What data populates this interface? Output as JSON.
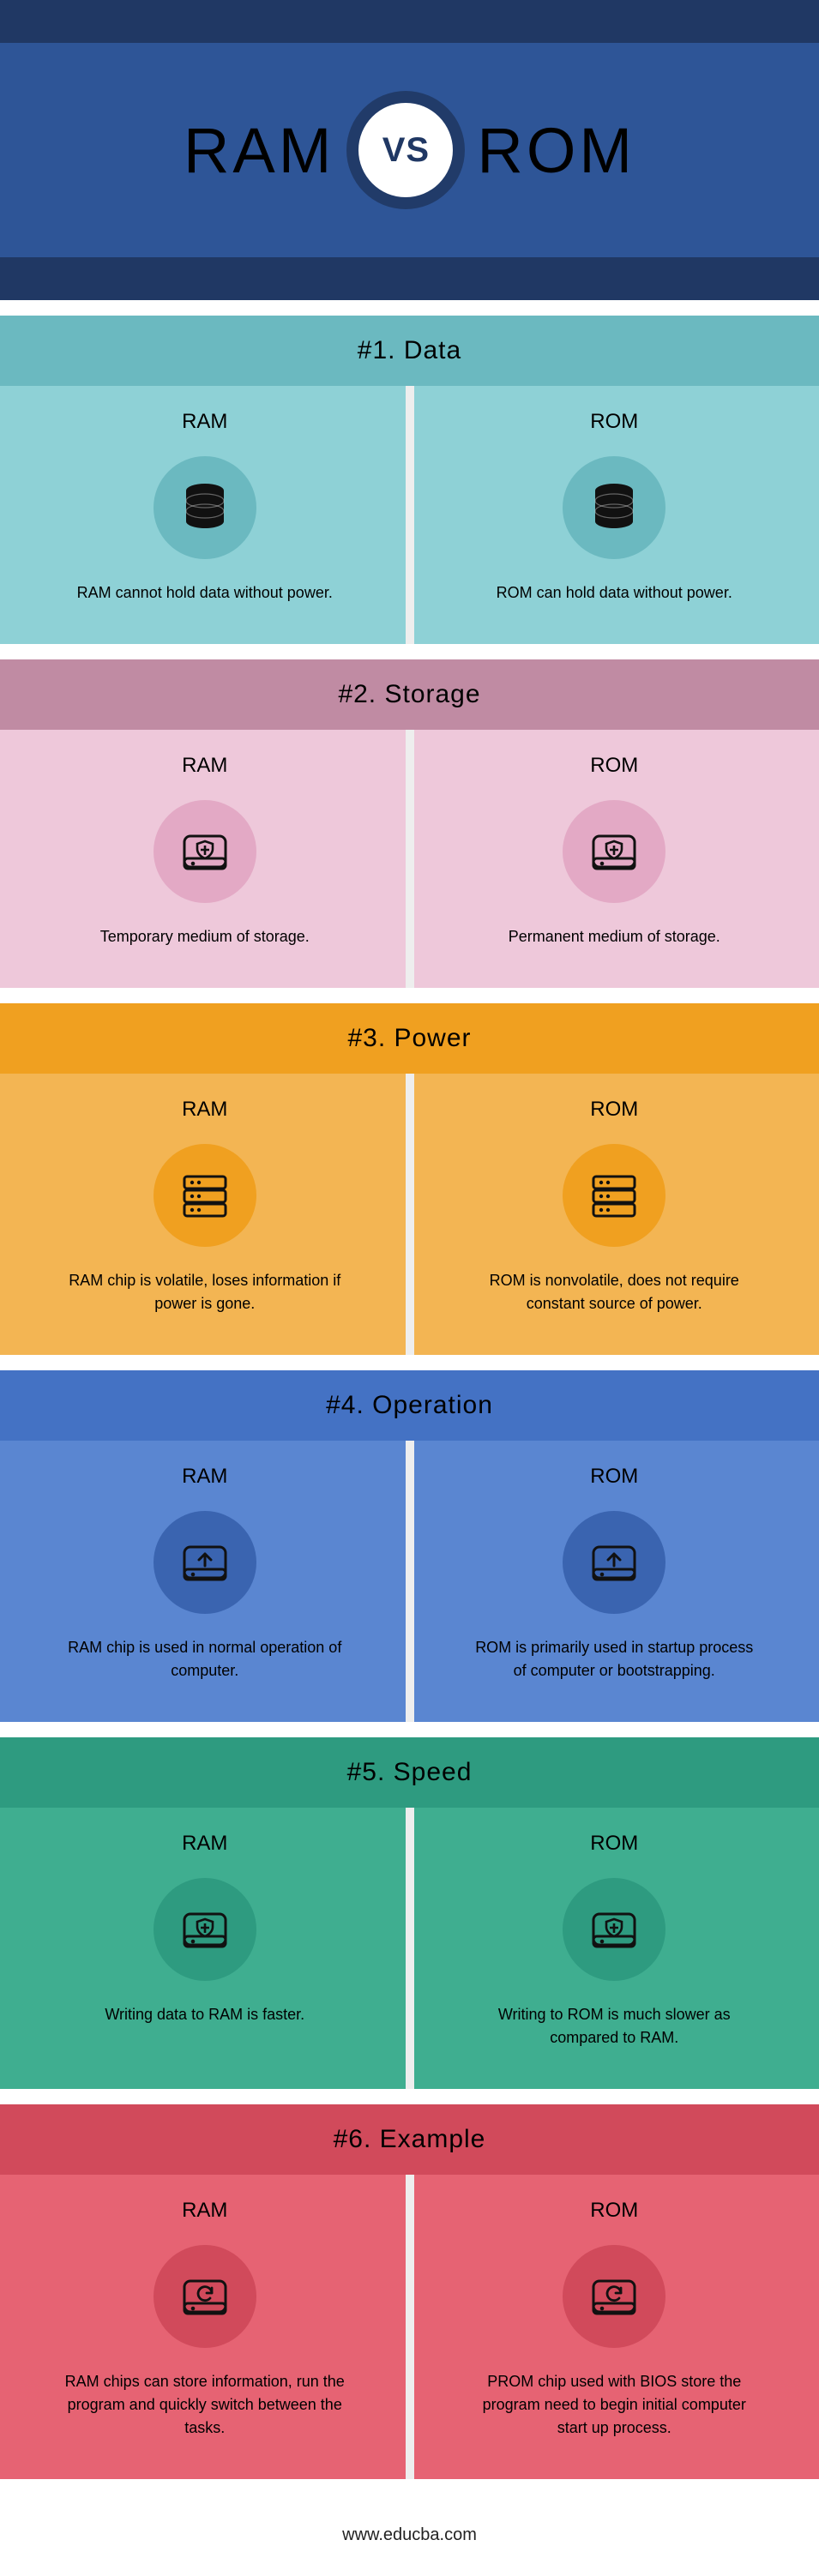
{
  "header": {
    "left": "RAM",
    "right": "ROM",
    "vs": "VS"
  },
  "footer": "www.educba.com",
  "sections": [
    {
      "title": "#1. Data",
      "header_bg": "#6bb9c0",
      "body_bg": "#8ed1d6",
      "circle_bg": "#6bb9c0",
      "icon": "db",
      "ram_label": "RAM",
      "rom_label": "ROM",
      "ram_text": "RAM cannot hold data without power.",
      "rom_text": "ROM can hold data without power."
    },
    {
      "title": "#2. Storage",
      "header_bg": "#c08ba3",
      "body_bg": "#eec8da",
      "circle_bg": "#e3a9c5",
      "icon": "drive-shield",
      "ram_label": "RAM",
      "rom_label": "ROM",
      "ram_text": "Temporary medium of storage.",
      "rom_text": "Permanent medium of storage."
    },
    {
      "title": "#3. Power",
      "header_bg": "#f0a020",
      "body_bg": "#f3b553",
      "circle_bg": "#f0a020",
      "icon": "rack",
      "ram_label": "RAM",
      "rom_label": "ROM",
      "ram_text": "RAM chip is volatile, loses information if power is gone.",
      "rom_text": "ROM is nonvolatile, does not require constant source of power."
    },
    {
      "title": "#4. Operation",
      "header_bg": "#4472c4",
      "body_bg": "#5a86d1",
      "circle_bg": "#3a64b0",
      "icon": "drive-up",
      "ram_label": "RAM",
      "rom_label": "ROM",
      "ram_text": "RAM chip is used in normal operation of computer.",
      "rom_text": "ROM is primarily used in startup process of computer or bootstrapping."
    },
    {
      "title": "#5. Speed",
      "header_bg": "#2e9b80",
      "body_bg": "#3fae90",
      "circle_bg": "#2e9b80",
      "icon": "drive-shield",
      "ram_label": "RAM",
      "rom_label": "ROM",
      "ram_text": "Writing data to RAM is faster.",
      "rom_text": "Writing to ROM is much slower as compared to RAM."
    },
    {
      "title": "#6. Example",
      "header_bg": "#d14a5b",
      "body_bg": "#e66373",
      "circle_bg": "#d14a5b",
      "icon": "drive-refresh",
      "ram_label": "RAM",
      "rom_label": "ROM",
      "ram_text": "RAM chips can store information, run the program and quickly switch between the tasks.",
      "rom_text": "PROM chip used with BIOS store the program need to begin initial computer start up process."
    }
  ]
}
